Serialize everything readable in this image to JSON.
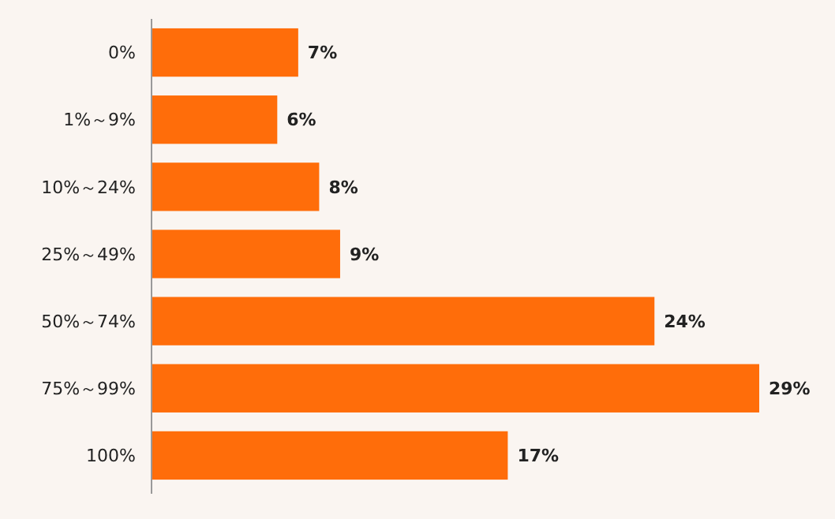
{
  "chart_data": {
    "type": "bar",
    "orientation": "horizontal",
    "categories": [
      "0%",
      "1%～9%",
      "10%～24%",
      "25%～49%",
      "50%～74%",
      "75%～99%",
      "100%"
    ],
    "values": [
      7,
      6,
      8,
      9,
      24,
      29,
      17
    ],
    "value_labels": [
      "7%",
      "6%",
      "8%",
      "9%",
      "24%",
      "29%",
      "17%"
    ],
    "color": "#ff6d0a"
  }
}
